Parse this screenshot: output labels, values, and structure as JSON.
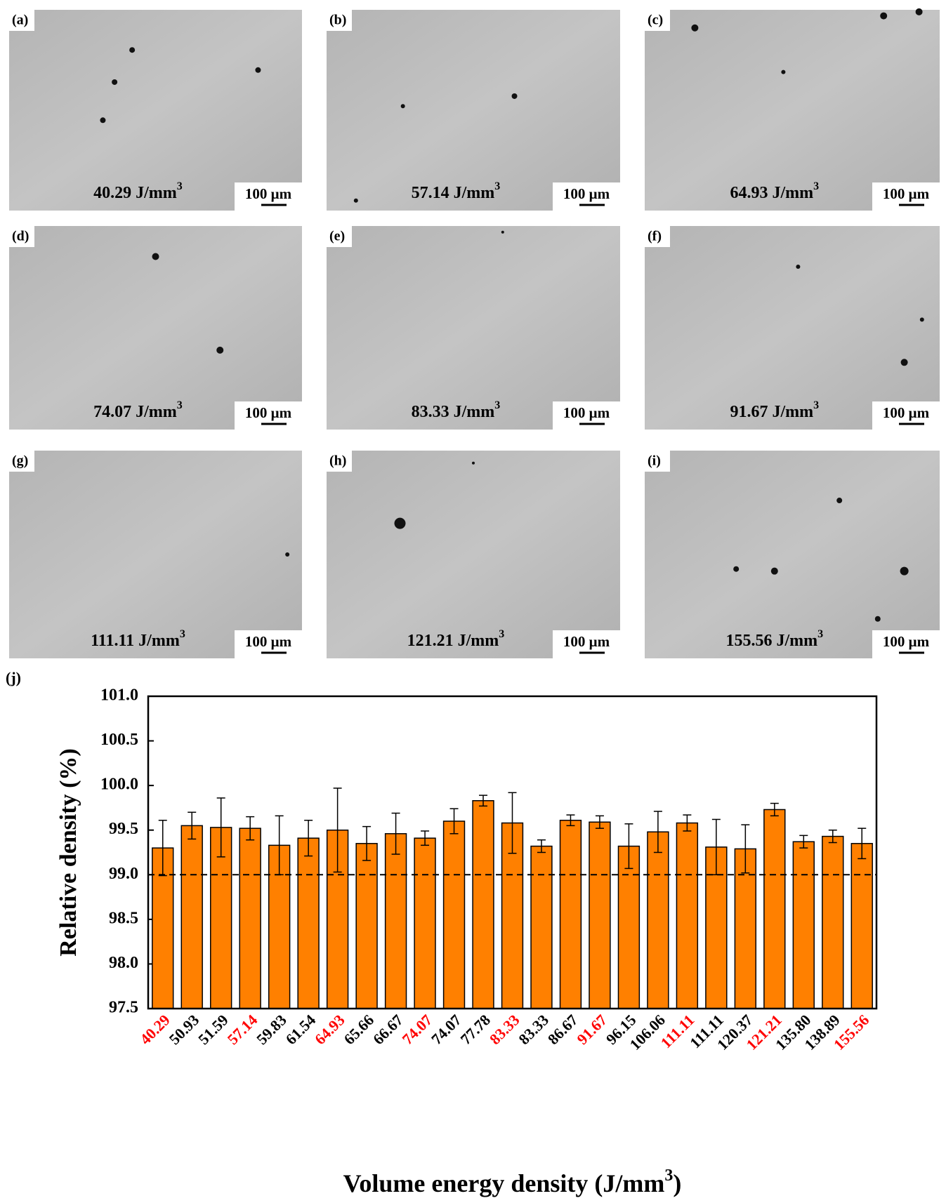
{
  "panels": [
    {
      "tag": "(a)",
      "energy": "40.29 J/mm",
      "sup": "3",
      "scale": "100 μm"
    },
    {
      "tag": "(b)",
      "energy": "57.14 J/mm",
      "sup": "3",
      "scale": "100 μm"
    },
    {
      "tag": "(c)",
      "energy": "64.93 J/mm",
      "sup": "3",
      "scale": "100 μm"
    },
    {
      "tag": "(d)",
      "energy": "74.07 J/mm",
      "sup": "3",
      "scale": "100 μm"
    },
    {
      "tag": "(e)",
      "energy": "83.33 J/mm",
      "sup": "3",
      "scale": "100 μm"
    },
    {
      "tag": "(f)",
      "energy": "91.67 J/mm",
      "sup": "3",
      "scale": "100 μm"
    },
    {
      "tag": "(g)",
      "energy": "111.11 J/mm",
      "sup": "3",
      "scale": "100 μm"
    },
    {
      "tag": "(h)",
      "energy": "121.21 J/mm",
      "sup": "3",
      "scale": "100 μm"
    },
    {
      "tag": "(i)",
      "energy": "155.56 J/mm",
      "sup": "3",
      "scale": "100 μm"
    }
  ],
  "chart_data": {
    "type": "bar",
    "tag": "(j)",
    "y_label": "Relative density (%)",
    "x_label": "Volume energy density (J/mm",
    "x_label_sup": "3",
    "x_label_end": ")",
    "categories": [
      "40.29",
      "50.93",
      "51.59",
      "57.14",
      "59.83",
      "61.54",
      "64.93",
      "65.66",
      "66.67",
      "74.07",
      "74.07",
      "77.78",
      "83.33",
      "83.33",
      "86.67",
      "91.67",
      "96.15",
      "106.06",
      "111.11",
      "111.11",
      "120.37",
      "121.21",
      "135.80",
      "138.89",
      "155.56"
    ],
    "category_colors": [
      "#ff0000",
      "#000000",
      "#000000",
      "#ff0000",
      "#000000",
      "#000000",
      "#ff0000",
      "#000000",
      "#000000",
      "#ff0000",
      "#000000",
      "#000000",
      "#ff0000",
      "#000000",
      "#000000",
      "#ff0000",
      "#000000",
      "#000000",
      "#ff0000",
      "#000000",
      "#000000",
      "#ff0000",
      "#000000",
      "#000000",
      "#ff0000"
    ],
    "values": [
      99.3,
      99.55,
      99.53,
      99.52,
      99.33,
      99.41,
      99.5,
      99.35,
      99.46,
      99.41,
      99.6,
      99.83,
      99.58,
      99.32,
      99.61,
      99.59,
      99.32,
      99.48,
      99.58,
      99.31,
      99.29,
      99.73,
      99.37,
      99.43,
      99.35
    ],
    "errors": [
      0.31,
      0.15,
      0.33,
      0.13,
      0.33,
      0.2,
      0.47,
      0.19,
      0.23,
      0.08,
      0.14,
      0.06,
      0.34,
      0.07,
      0.06,
      0.07,
      0.25,
      0.23,
      0.09,
      0.31,
      0.27,
      0.07,
      0.07,
      0.07,
      0.17
    ],
    "color": "#ff8000",
    "reference_line": 99.0,
    "ylim": [
      97.5,
      101.0
    ],
    "yticks": [
      {
        "value": 97.5,
        "label": "97.5"
      },
      {
        "value": 98.0,
        "label": "98.0"
      },
      {
        "value": 98.5,
        "label": "98.5"
      },
      {
        "value": 99.0,
        "label": "99.0"
      },
      {
        "value": 99.5,
        "label": "99.5"
      },
      {
        "value": 100.0,
        "label": "100.0"
      },
      {
        "value": 100.5,
        "label": "100.5"
      },
      {
        "value": 101.0,
        "label": "101.0"
      }
    ]
  }
}
